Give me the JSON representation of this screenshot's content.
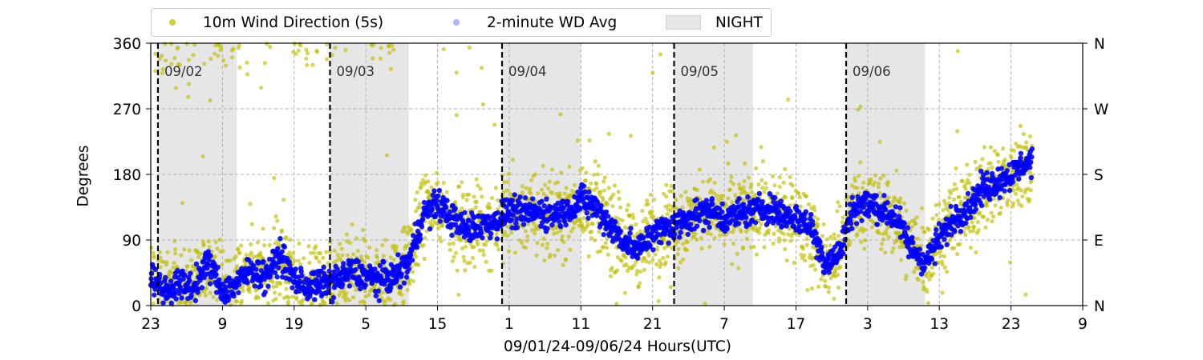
{
  "chart_data": {
    "type": "scatter",
    "title": "",
    "xlabel": "09/01/24-09/06/24  Hours(UTC)",
    "ylabel": "Degrees",
    "x_start": "2024-09-01 23:00",
    "xlim_hours": [
      0,
      130
    ],
    "ylim": [
      0,
      360
    ],
    "x_ticks": [
      "23",
      "9",
      "19",
      "5",
      "15",
      "1",
      "11",
      "21",
      "7",
      "17",
      "3",
      "13",
      "23",
      "9"
    ],
    "y_ticks": [
      "0",
      "90",
      "180",
      "270",
      "360"
    ],
    "y_right_ticks": [
      "N",
      "E",
      "S",
      "W",
      "N"
    ],
    "grid": true,
    "legend_position": "top-left",
    "day_markers": [
      {
        "hour": 1,
        "label": "09/02"
      },
      {
        "hour": 25,
        "label": "09/03"
      },
      {
        "hour": 49,
        "label": "09/04"
      },
      {
        "hour": 73,
        "label": "09/05"
      },
      {
        "hour": 97,
        "label": "09/06"
      }
    ],
    "night_spans": [
      [
        1,
        12
      ],
      [
        25,
        36
      ],
      [
        49,
        60
      ],
      [
        73,
        84
      ],
      [
        97,
        108
      ]
    ],
    "night_label": "NIGHT",
    "series": [
      {
        "name": "10m Wind Direction (5s)",
        "color": "#bfbf00",
        "trend": [
          [
            0,
            40
          ],
          [
            2,
            20
          ],
          [
            4,
            30
          ],
          [
            6,
            25
          ],
          [
            8,
            60
          ],
          [
            10,
            20
          ],
          [
            12,
            30
          ],
          [
            14,
            50
          ],
          [
            16,
            40
          ],
          [
            18,
            70
          ],
          [
            20,
            35
          ],
          [
            22,
            25
          ],
          [
            24,
            30
          ],
          [
            26,
            35
          ],
          [
            28,
            45
          ],
          [
            30,
            40
          ],
          [
            32,
            35
          ],
          [
            34,
            40
          ],
          [
            36,
            60
          ],
          [
            38,
            125
          ],
          [
            40,
            140
          ],
          [
            42,
            120
          ],
          [
            44,
            105
          ],
          [
            46,
            110
          ],
          [
            48,
            115
          ],
          [
            50,
            130
          ],
          [
            52,
            125
          ],
          [
            54,
            130
          ],
          [
            56,
            125
          ],
          [
            58,
            130
          ],
          [
            60,
            145
          ],
          [
            62,
            135
          ],
          [
            64,
            110
          ],
          [
            66,
            90
          ],
          [
            68,
            75
          ],
          [
            70,
            100
          ],
          [
            72,
            105
          ],
          [
            74,
            115
          ],
          [
            76,
            125
          ],
          [
            78,
            130
          ],
          [
            80,
            120
          ],
          [
            82,
            125
          ],
          [
            84,
            130
          ],
          [
            86,
            135
          ],
          [
            88,
            125
          ],
          [
            90,
            120
          ],
          [
            92,
            110
          ],
          [
            94,
            60
          ],
          [
            96,
            70
          ],
          [
            98,
            135
          ],
          [
            100,
            140
          ],
          [
            102,
            130
          ],
          [
            104,
            120
          ],
          [
            106,
            80
          ],
          [
            108,
            60
          ],
          [
            110,
            90
          ],
          [
            112,
            120
          ],
          [
            114,
            135
          ],
          [
            116,
            160
          ],
          [
            118,
            170
          ],
          [
            120,
            180
          ],
          [
            122,
            195
          ],
          [
            123,
            200
          ]
        ]
      },
      {
        "name": "2-minute WD Avg",
        "color": "#0000ff",
        "trend": [
          [
            0,
            40
          ],
          [
            2,
            20
          ],
          [
            4,
            30
          ],
          [
            6,
            25
          ],
          [
            8,
            60
          ],
          [
            10,
            20
          ],
          [
            12,
            30
          ],
          [
            14,
            50
          ],
          [
            16,
            40
          ],
          [
            18,
            70
          ],
          [
            20,
            35
          ],
          [
            22,
            25
          ],
          [
            24,
            30
          ],
          [
            26,
            35
          ],
          [
            28,
            45
          ],
          [
            30,
            40
          ],
          [
            32,
            35
          ],
          [
            34,
            40
          ],
          [
            36,
            60
          ],
          [
            38,
            125
          ],
          [
            40,
            140
          ],
          [
            42,
            120
          ],
          [
            44,
            105
          ],
          [
            46,
            110
          ],
          [
            48,
            115
          ],
          [
            50,
            130
          ],
          [
            52,
            125
          ],
          [
            54,
            130
          ],
          [
            56,
            125
          ],
          [
            58,
            130
          ],
          [
            60,
            145
          ],
          [
            62,
            135
          ],
          [
            64,
            110
          ],
          [
            66,
            90
          ],
          [
            68,
            75
          ],
          [
            70,
            100
          ],
          [
            72,
            105
          ],
          [
            74,
            115
          ],
          [
            76,
            125
          ],
          [
            78,
            130
          ],
          [
            80,
            120
          ],
          [
            82,
            125
          ],
          [
            84,
            130
          ],
          [
            86,
            135
          ],
          [
            88,
            125
          ],
          [
            90,
            120
          ],
          [
            92,
            110
          ],
          [
            94,
            60
          ],
          [
            96,
            70
          ],
          [
            98,
            135
          ],
          [
            100,
            140
          ],
          [
            102,
            130
          ],
          [
            104,
            120
          ],
          [
            106,
            80
          ],
          [
            108,
            60
          ],
          [
            110,
            90
          ],
          [
            112,
            120
          ],
          [
            114,
            135
          ],
          [
            116,
            160
          ],
          [
            118,
            170
          ],
          [
            120,
            180
          ],
          [
            122,
            195
          ],
          [
            123,
            200
          ]
        ]
      }
    ]
  },
  "legend": {
    "item1": "10m Wind Direction (5s)",
    "item2": "2-minute WD Avg",
    "item3": "NIGHT"
  }
}
